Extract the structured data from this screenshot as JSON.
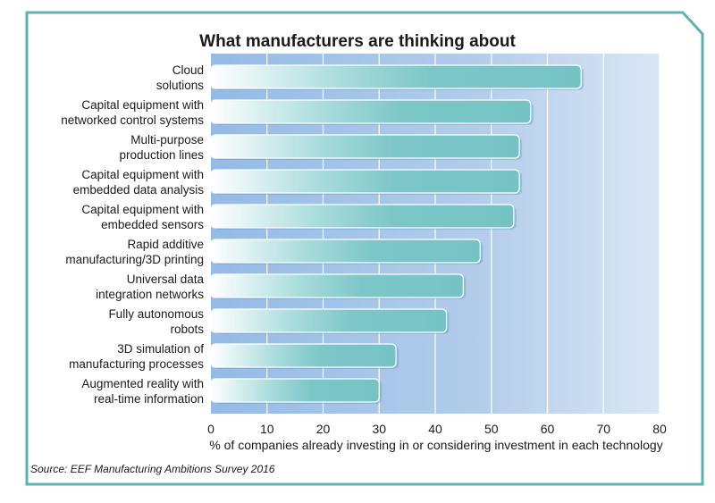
{
  "chart_data": {
    "type": "bar",
    "orientation": "horizontal",
    "title": "What manufacturers are thinking about",
    "xlabel": "% of companies already investing in or considering investment in each technology",
    "ylabel": "",
    "xlim": [
      0,
      80
    ],
    "xticks": [
      0,
      10,
      20,
      30,
      40,
      50,
      60,
      70,
      80
    ],
    "grid": true,
    "categories": [
      [
        "Cloud",
        "solutions"
      ],
      [
        "Capital equipment with",
        "networked control systems"
      ],
      [
        "Multi-purpose",
        "production lines"
      ],
      [
        "Capital equipment with",
        "embedded data analysis"
      ],
      [
        "Capital equipment with",
        "embedded sensors"
      ],
      [
        "Rapid additive",
        "manufacturing/3D printing"
      ],
      [
        "Universal data",
        "integration networks"
      ],
      [
        "Fully autonomous",
        "robots"
      ],
      [
        "3D simulation of",
        "manufacturing processes"
      ],
      [
        "Augmented reality with",
        "real-time information"
      ]
    ],
    "values": [
      66,
      57,
      55,
      55,
      54,
      48,
      45,
      42,
      33,
      30
    ],
    "colors": {
      "bar": "#7cc6c8",
      "background": "#a9c7e8",
      "frame": "#5bb4b1"
    }
  },
  "source": "Source: EEF Manufacturing Ambitions Survey 2016"
}
